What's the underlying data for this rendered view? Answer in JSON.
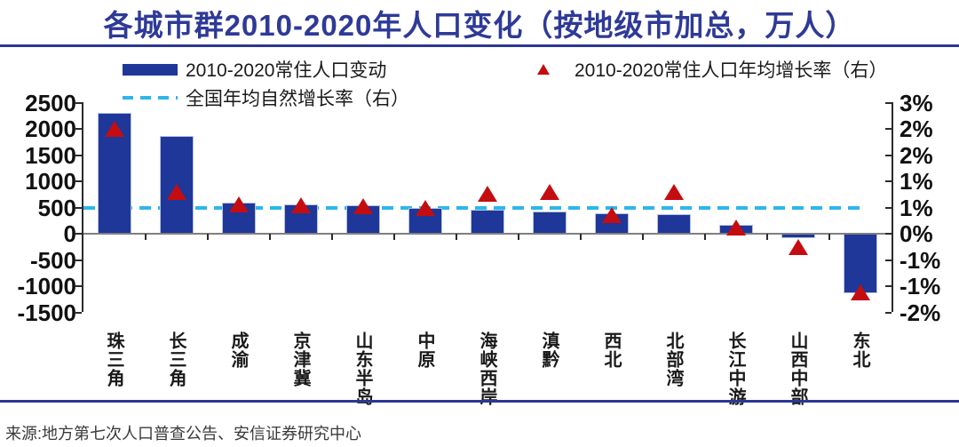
{
  "title": "各城市群2010-2020年人口变化（按地级市加总，万人）",
  "source": "来源:地方第七次人口普查公告、安信证券研究中心",
  "legend": {
    "bar_label": "2010-2020常住人口变动",
    "marker_label": "2010-2020常住人口年均增长率（右）",
    "line_label": "全国年均自然增长率（右）"
  },
  "colors": {
    "bar": "#1E3799",
    "marker": "#C40D11",
    "dash": "#2EB6EA",
    "title": "#2E3A97",
    "rule": "#2B3990",
    "axisText": "#111111",
    "zeroLine": "#7F7F7F",
    "axisLine": "#2b2b2b"
  },
  "chart_data": {
    "type": "bar",
    "title": "各城市群2010-2020年人口变化（按地级市加总，万人）",
    "categories": [
      "珠三角",
      "长三角",
      "成渝",
      "京津冀",
      "山东半岛",
      "中原",
      "海峡西岸",
      "滇黔",
      "西北",
      "北部湾",
      "长江中游",
      "山西中部",
      "东北"
    ],
    "series": [
      {
        "name": "2010-2020常住人口变动",
        "type": "bar",
        "axis": "left",
        "unit": "万人",
        "values": [
          2310,
          1860,
          600,
          560,
          545,
          500,
          460,
          430,
          390,
          375,
          165,
          -90,
          -1140
        ]
      },
      {
        "name": "2010-2020常住人口年均增长率（右）",
        "type": "scatter",
        "marker": "triangle",
        "axis": "right",
        "unit": "%",
        "values": [
          2.4,
          0.95,
          0.67,
          0.65,
          0.64,
          0.6,
          0.92,
          0.95,
          0.42,
          0.95,
          0.15,
          -0.3,
          -1.35
        ]
      },
      {
        "name": "全国年均自然增长率（右）",
        "type": "hline",
        "axis": "right",
        "unit": "%",
        "value": 0.6
      }
    ],
    "left_axis": {
      "min": -1500,
      "max": 2500,
      "step": 500,
      "ticks": [
        "2500",
        "2000",
        "1500",
        "1000",
        "500",
        "0",
        "-500",
        "-1000",
        "-1500"
      ]
    },
    "right_axis": {
      "min": -1.8,
      "max": 3.0,
      "step": 0.6,
      "ticks": [
        "3%",
        "2%",
        "2%",
        "1%",
        "1%",
        "0%",
        "-1%",
        "-1%",
        "-2%"
      ]
    },
    "grid": false,
    "legend_position": "top-left"
  }
}
